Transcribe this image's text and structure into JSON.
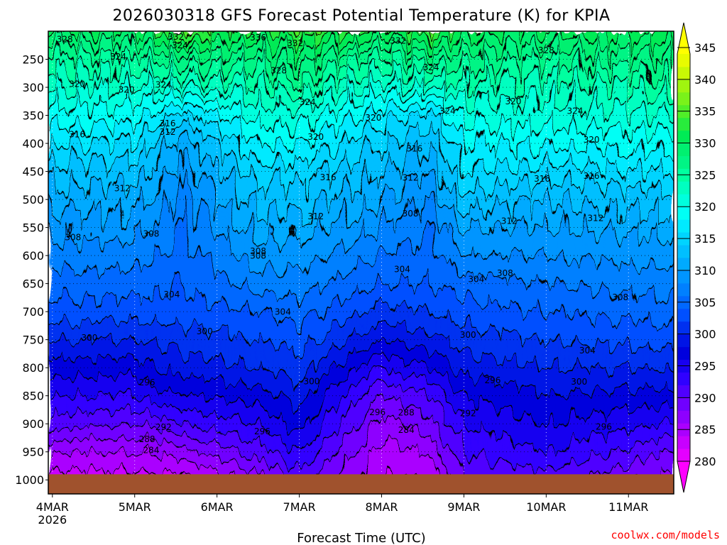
{
  "chart_data": {
    "type": "heatmap",
    "title": "2026030318 GFS Forecast Potential Temperature (K) for KPIA",
    "xlabel": "Forecast Time (UTC)",
    "ylabel": "",
    "x_unit": "days since 4MAR 00Z",
    "xlim": [
      -0.05,
      7.55
    ],
    "x_ticks": [
      {
        "value": 0,
        "label": "4MAR",
        "sub": "2026"
      },
      {
        "value": 1,
        "label": "5MAR"
      },
      {
        "value": 2,
        "label": "6MAR"
      },
      {
        "value": 3,
        "label": "7MAR"
      },
      {
        "value": 4,
        "label": "8MAR"
      },
      {
        "value": 5,
        "label": "9MAR"
      },
      {
        "value": 6,
        "label": "10MAR"
      },
      {
        "value": 7,
        "label": "11MAR"
      }
    ],
    "y_unit": "hPa",
    "ylim": [
      1025,
      200
    ],
    "y_ticks": [
      250,
      300,
      350,
      400,
      450,
      500,
      550,
      600,
      650,
      700,
      750,
      800,
      850,
      900,
      950,
      1000
    ],
    "surface_pressure": 990,
    "colorbar": {
      "ticks": [
        345,
        340,
        335,
        330,
        325,
        320,
        315,
        310,
        305,
        300,
        295,
        290,
        285,
        280
      ],
      "levels": [
        278,
        280,
        282,
        284,
        286,
        288,
        290,
        292,
        294,
        296,
        298,
        300,
        302,
        304,
        306,
        308,
        310,
        312,
        314,
        316,
        318,
        320,
        322,
        324,
        326,
        328,
        330,
        332,
        334,
        336,
        338,
        340,
        342,
        344,
        346
      ],
      "colors": [
        "#ff00ff",
        "#e400ff",
        "#c800ff",
        "#aa00ff",
        "#8e00ff",
        "#7000ff",
        "#5000ff",
        "#3000ff",
        "#1800f0",
        "#0000dd",
        "#0014e6",
        "#0030f0",
        "#0050ff",
        "#0068ff",
        "#0080ff",
        "#0095ff",
        "#00aaff",
        "#00bfff",
        "#00d4ff",
        "#00eaff",
        "#00fff5",
        "#00ffdd",
        "#00ffc0",
        "#00ffa0",
        "#00f585",
        "#00f070",
        "#00eb55",
        "#28ec3c",
        "#50ee28",
        "#7af21a",
        "#a0f50f",
        "#c8f805",
        "#e8fc00",
        "#ffff00"
      ]
    },
    "series": [
      {
        "name": "pressure_hPa",
        "values": [
          1000,
          950,
          900,
          850,
          800,
          750,
          700,
          650,
          600,
          550,
          500,
          450,
          400,
          350,
          300,
          250,
          200
        ]
      },
      {
        "name": "theta_4MAR_00Z",
        "values": [
          283,
          286,
          291,
          294,
          297,
          300,
          303,
          305,
          307,
          309,
          311,
          313,
          316,
          319,
          322,
          325,
          330
        ]
      },
      {
        "name": "theta_5MAR_00Z",
        "values": [
          283,
          286,
          290,
          294,
          297,
          300,
          303,
          305,
          307,
          309,
          311,
          313,
          316,
          319,
          322,
          325,
          330
        ]
      },
      {
        "name": "theta_5MAR_14Z",
        "values": [
          283,
          287,
          292,
          296,
          299,
          301,
          303,
          304,
          305,
          306,
          307,
          309,
          311,
          315,
          322,
          327,
          334
        ]
      },
      {
        "name": "theta_6MAR_12Z",
        "values": [
          287,
          291,
          294,
          297,
          300,
          302,
          304,
          307,
          309,
          311,
          313,
          315,
          318,
          321,
          324,
          327,
          331
        ]
      },
      {
        "name": "theta_7MAR_00Z",
        "values": [
          291,
          294,
          297,
          299,
          301,
          303,
          305,
          307,
          309,
          311,
          313,
          315,
          318,
          321,
          325,
          329,
          334
        ]
      },
      {
        "name": "theta_8MAR_00Z",
        "values": [
          284,
          285,
          287,
          290,
          294,
          298,
          301,
          304,
          306,
          308,
          310,
          312,
          314,
          317,
          321,
          325,
          331
        ]
      },
      {
        "name": "theta_8MAR_14Z",
        "values": [
          284,
          286,
          289,
          292,
          296,
          299,
          302,
          304,
          305,
          306,
          308,
          310,
          312,
          315,
          322,
          327,
          334
        ]
      },
      {
        "name": "theta_9MAR_00Z",
        "values": [
          290,
          292,
          294,
          296,
          299,
          301,
          303,
          305,
          308,
          310,
          313,
          316,
          318,
          321,
          324,
          327,
          331
        ]
      },
      {
        "name": "theta_10MAR_00Z",
        "values": [
          291,
          294,
          296,
          298,
          300,
          302,
          304,
          306,
          308,
          310,
          312,
          315,
          318,
          321,
          323,
          326,
          330
        ]
      },
      {
        "name": "theta_11MAR_12Z",
        "values": [
          287,
          290,
          294,
          297,
          300,
          303,
          305,
          307,
          309,
          311,
          313,
          316,
          319,
          322,
          325,
          328,
          331
        ]
      }
    ],
    "contour_labels": [
      {
        "text": "328",
        "x": 0.15,
        "p": 215
      },
      {
        "text": "332",
        "x": 1.5,
        "p": 211
      },
      {
        "text": "336",
        "x": 2.5,
        "p": 212
      },
      {
        "text": "332",
        "x": 2.95,
        "p": 222
      },
      {
        "text": "332",
        "x": 4.2,
        "p": 218
      },
      {
        "text": "324",
        "x": 1.55,
        "p": 226
      },
      {
        "text": "328",
        "x": 6.0,
        "p": 235
      },
      {
        "text": "324",
        "x": 0.8,
        "p": 246
      },
      {
        "text": "328",
        "x": 2.75,
        "p": 271
      },
      {
        "text": "324",
        "x": 4.6,
        "p": 265
      },
      {
        "text": "320",
        "x": 0.3,
        "p": 295
      },
      {
        "text": "324",
        "x": 1.35,
        "p": 296
      },
      {
        "text": "320",
        "x": 0.9,
        "p": 305
      },
      {
        "text": "324",
        "x": 3.1,
        "p": 327
      },
      {
        "text": "324",
        "x": 4.8,
        "p": 343
      },
      {
        "text": "324",
        "x": 6.35,
        "p": 343
      },
      {
        "text": "320",
        "x": 5.6,
        "p": 326
      },
      {
        "text": "320",
        "x": 3.9,
        "p": 355
      },
      {
        "text": "316",
        "x": 1.4,
        "p": 365
      },
      {
        "text": "312",
        "x": 1.4,
        "p": 380
      },
      {
        "text": "316",
        "x": 0.3,
        "p": 385
      },
      {
        "text": "320",
        "x": 3.2,
        "p": 389
      },
      {
        "text": "320",
        "x": 6.55,
        "p": 394
      },
      {
        "text": "316",
        "x": 4.4,
        "p": 410
      },
      {
        "text": "316",
        "x": 3.35,
        "p": 461
      },
      {
        "text": "312",
        "x": 4.35,
        "p": 462
      },
      {
        "text": "316",
        "x": 5.95,
        "p": 464
      },
      {
        "text": "316",
        "x": 6.55,
        "p": 459
      },
      {
        "text": "312",
        "x": 0.85,
        "p": 481
      },
      {
        "text": "312",
        "x": 3.2,
        "p": 531
      },
      {
        "text": "308",
        "x": 4.35,
        "p": 526
      },
      {
        "text": "312",
        "x": 5.55,
        "p": 539
      },
      {
        "text": "312",
        "x": 6.6,
        "p": 534
      },
      {
        "text": "308",
        "x": 0.25,
        "p": 568
      },
      {
        "text": "308",
        "x": 1.2,
        "p": 562
      },
      {
        "text": "308",
        "x": 2.5,
        "p": 593
      },
      {
        "text": "308",
        "x": 2.5,
        "p": 601
      },
      {
        "text": "304",
        "x": 4.25,
        "p": 625
      },
      {
        "text": "308",
        "x": 5.5,
        "p": 632
      },
      {
        "text": "304",
        "x": 5.15,
        "p": 643
      },
      {
        "text": "304",
        "x": 1.45,
        "p": 670
      },
      {
        "text": "304",
        "x": 2.8,
        "p": 701
      },
      {
        "text": "308",
        "x": 6.9,
        "p": 675
      },
      {
        "text": "300",
        "x": 0.45,
        "p": 747
      },
      {
        "text": "300",
        "x": 1.85,
        "p": 736
      },
      {
        "text": "300",
        "x": 5.05,
        "p": 742
      },
      {
        "text": "304",
        "x": 6.5,
        "p": 770
      },
      {
        "text": "296",
        "x": 1.15,
        "p": 827
      },
      {
        "text": "300",
        "x": 3.15,
        "p": 825
      },
      {
        "text": "296",
        "x": 5.35,
        "p": 823
      },
      {
        "text": "300",
        "x": 6.4,
        "p": 826
      },
      {
        "text": "296",
        "x": 3.95,
        "p": 880
      },
      {
        "text": "292",
        "x": 1.35,
        "p": 907
      },
      {
        "text": "296",
        "x": 2.55,
        "p": 914
      },
      {
        "text": "292",
        "x": 5.05,
        "p": 882
      },
      {
        "text": "288",
        "x": 4.3,
        "p": 881
      },
      {
        "text": "284",
        "x": 4.3,
        "p": 912
      },
      {
        "text": "296",
        "x": 6.7,
        "p": 906
      },
      {
        "text": "288",
        "x": 1.15,
        "p": 928
      },
      {
        "text": "284",
        "x": 1.2,
        "p": 948
      }
    ]
  },
  "credit": {
    "text": "coolwx.com/models",
    "color": "#ff0000"
  }
}
